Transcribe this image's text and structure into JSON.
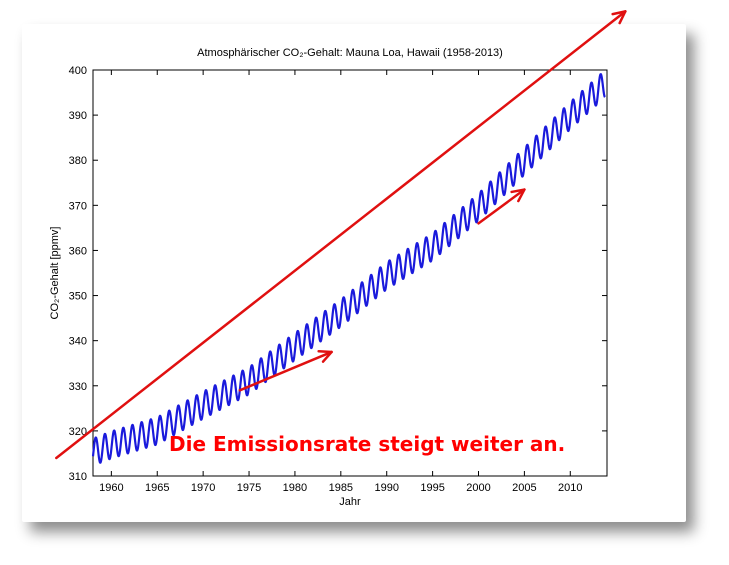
{
  "chart_data": {
    "type": "line",
    "title": "Atmosphärischer CO₂-Gehalt: Mauna Loa, Hawaii (1958-2013)",
    "xlabel": "Jahr",
    "ylabel": "CO₂-Gehalt [ppmv]",
    "xlim": [
      1958,
      2014
    ],
    "ylim": [
      310,
      400
    ],
    "x_ticks": [
      1960,
      1965,
      1970,
      1975,
      1980,
      1985,
      1990,
      1995,
      2000,
      2005,
      2010
    ],
    "y_ticks": [
      310,
      320,
      330,
      340,
      350,
      360,
      370,
      380,
      390,
      400
    ],
    "grid": false,
    "series": [
      {
        "color": "#1a1adc",
        "seasonal_amplitude_ppmv": 3,
        "x": [
          1958,
          1960,
          1965,
          1970,
          1975,
          1980,
          1985,
          1990,
          1995,
          2000,
          2005,
          2010,
          2013.8
        ],
        "values": [
          315.3,
          316.9,
          320.0,
          325.7,
          331.1,
          338.7,
          346.1,
          354.4,
          360.8,
          369.6,
          379.8,
          389.9,
          397.0
        ]
      }
    ],
    "annotation": {
      "text": "Die Emissionsrate steigt weiter an.",
      "color": "#ff0000"
    },
    "trend_arrows": [
      {
        "x1": 1954,
        "y1": 314,
        "x2": 2016,
        "y2": 413,
        "color": "#e01010"
      },
      {
        "x1": 1974,
        "y1": 329,
        "x2": 1984,
        "y2": 337.5,
        "color": "#e01010"
      },
      {
        "x1": 2000,
        "y1": 366,
        "x2": 2005,
        "y2": 373.5,
        "color": "#e01010"
      }
    ]
  }
}
